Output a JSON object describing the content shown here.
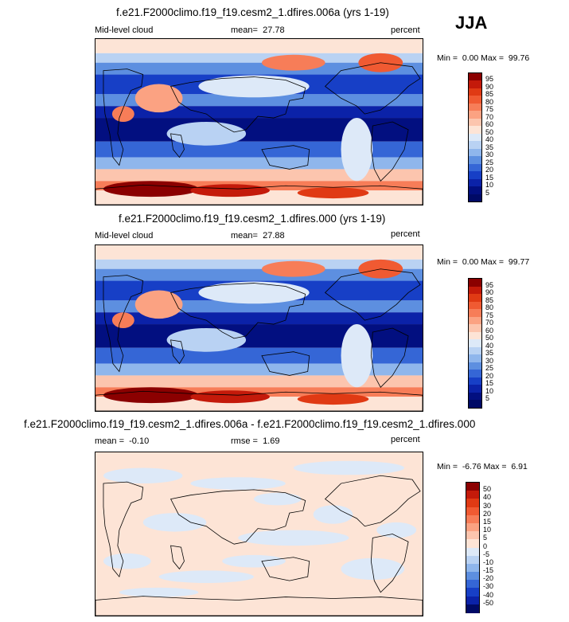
{
  "season": "JJA",
  "chart_data": [
    {
      "type": "heatmap",
      "title": "f.e21.F2000climo.f19_f19.cesm2_1.dfires.006a (yrs 1-19)",
      "left_label": "Mid-level cloud",
      "stat_label": "mean=",
      "stat_value": "27.78",
      "units": "percent",
      "min_label": "Min =",
      "min_value": "0.00",
      "max_label": "Max =",
      "max_value": "99.76",
      "colorbar_labels": [
        "95",
        "90",
        "85",
        "80",
        "75",
        "70",
        "60",
        "50",
        "40",
        "35",
        "30",
        "25",
        "20",
        "15",
        "10",
        "5"
      ],
      "colorbar_colors": [
        "#8b0000",
        "#c41a0a",
        "#e03a14",
        "#f05a32",
        "#f77d58",
        "#fba282",
        "#fcc5ae",
        "#fde4d6",
        "#dde9f8",
        "#b9d2f3",
        "#8fb6ec",
        "#5d8fe0",
        "#3566d6",
        "#173fc6",
        "#0b22a8",
        "#020f80",
        "#000a66"
      ],
      "grid": false
    },
    {
      "type": "heatmap",
      "title": "f.e21.F2000climo.f19_f19.cesm2_1.dfires.000 (yrs 1-19)",
      "left_label": "Mid-level cloud",
      "stat_label": "mean=",
      "stat_value": "27.88",
      "units": "percent",
      "min_label": "Min =",
      "min_value": "0.00",
      "max_label": "Max =",
      "max_value": "99.77",
      "colorbar_labels": [
        "95",
        "90",
        "85",
        "80",
        "75",
        "70",
        "60",
        "50",
        "40",
        "35",
        "30",
        "25",
        "20",
        "15",
        "10",
        "5"
      ],
      "colorbar_colors": [
        "#8b0000",
        "#c41a0a",
        "#e03a14",
        "#f05a32",
        "#f77d58",
        "#fba282",
        "#fcc5ae",
        "#fde4d6",
        "#dde9f8",
        "#b9d2f3",
        "#8fb6ec",
        "#5d8fe0",
        "#3566d6",
        "#173fc6",
        "#0b22a8",
        "#020f80",
        "#000a66"
      ],
      "grid": false
    },
    {
      "type": "heatmap",
      "title": "f.e21.F2000climo.f19_f19.cesm2_1.dfires.006a - f.e21.F2000climo.f19_f19.cesm2_1.dfires.000",
      "left_label": "mean =",
      "left_value": "-0.10",
      "stat_label": "rmse =",
      "stat_value": "1.69",
      "units": "percent",
      "min_label": "Min =",
      "min_value": "-6.76",
      "max_label": "Max =",
      "max_value": "6.91",
      "colorbar_labels": [
        "50",
        "40",
        "30",
        "20",
        "15",
        "10",
        "5",
        "0",
        "-5",
        "-10",
        "-15",
        "-20",
        "-30",
        "-40",
        "-50"
      ],
      "colorbar_colors": [
        "#8b0000",
        "#c41a0a",
        "#e03a14",
        "#f05a32",
        "#f77d58",
        "#fba282",
        "#fcc5ae",
        "#fde4d6",
        "#dde9f8",
        "#b9d2f3",
        "#8fb6ec",
        "#5d8fe0",
        "#3566d6",
        "#173fc6",
        "#0b22a8",
        "#000a66"
      ],
      "grid": false
    }
  ]
}
